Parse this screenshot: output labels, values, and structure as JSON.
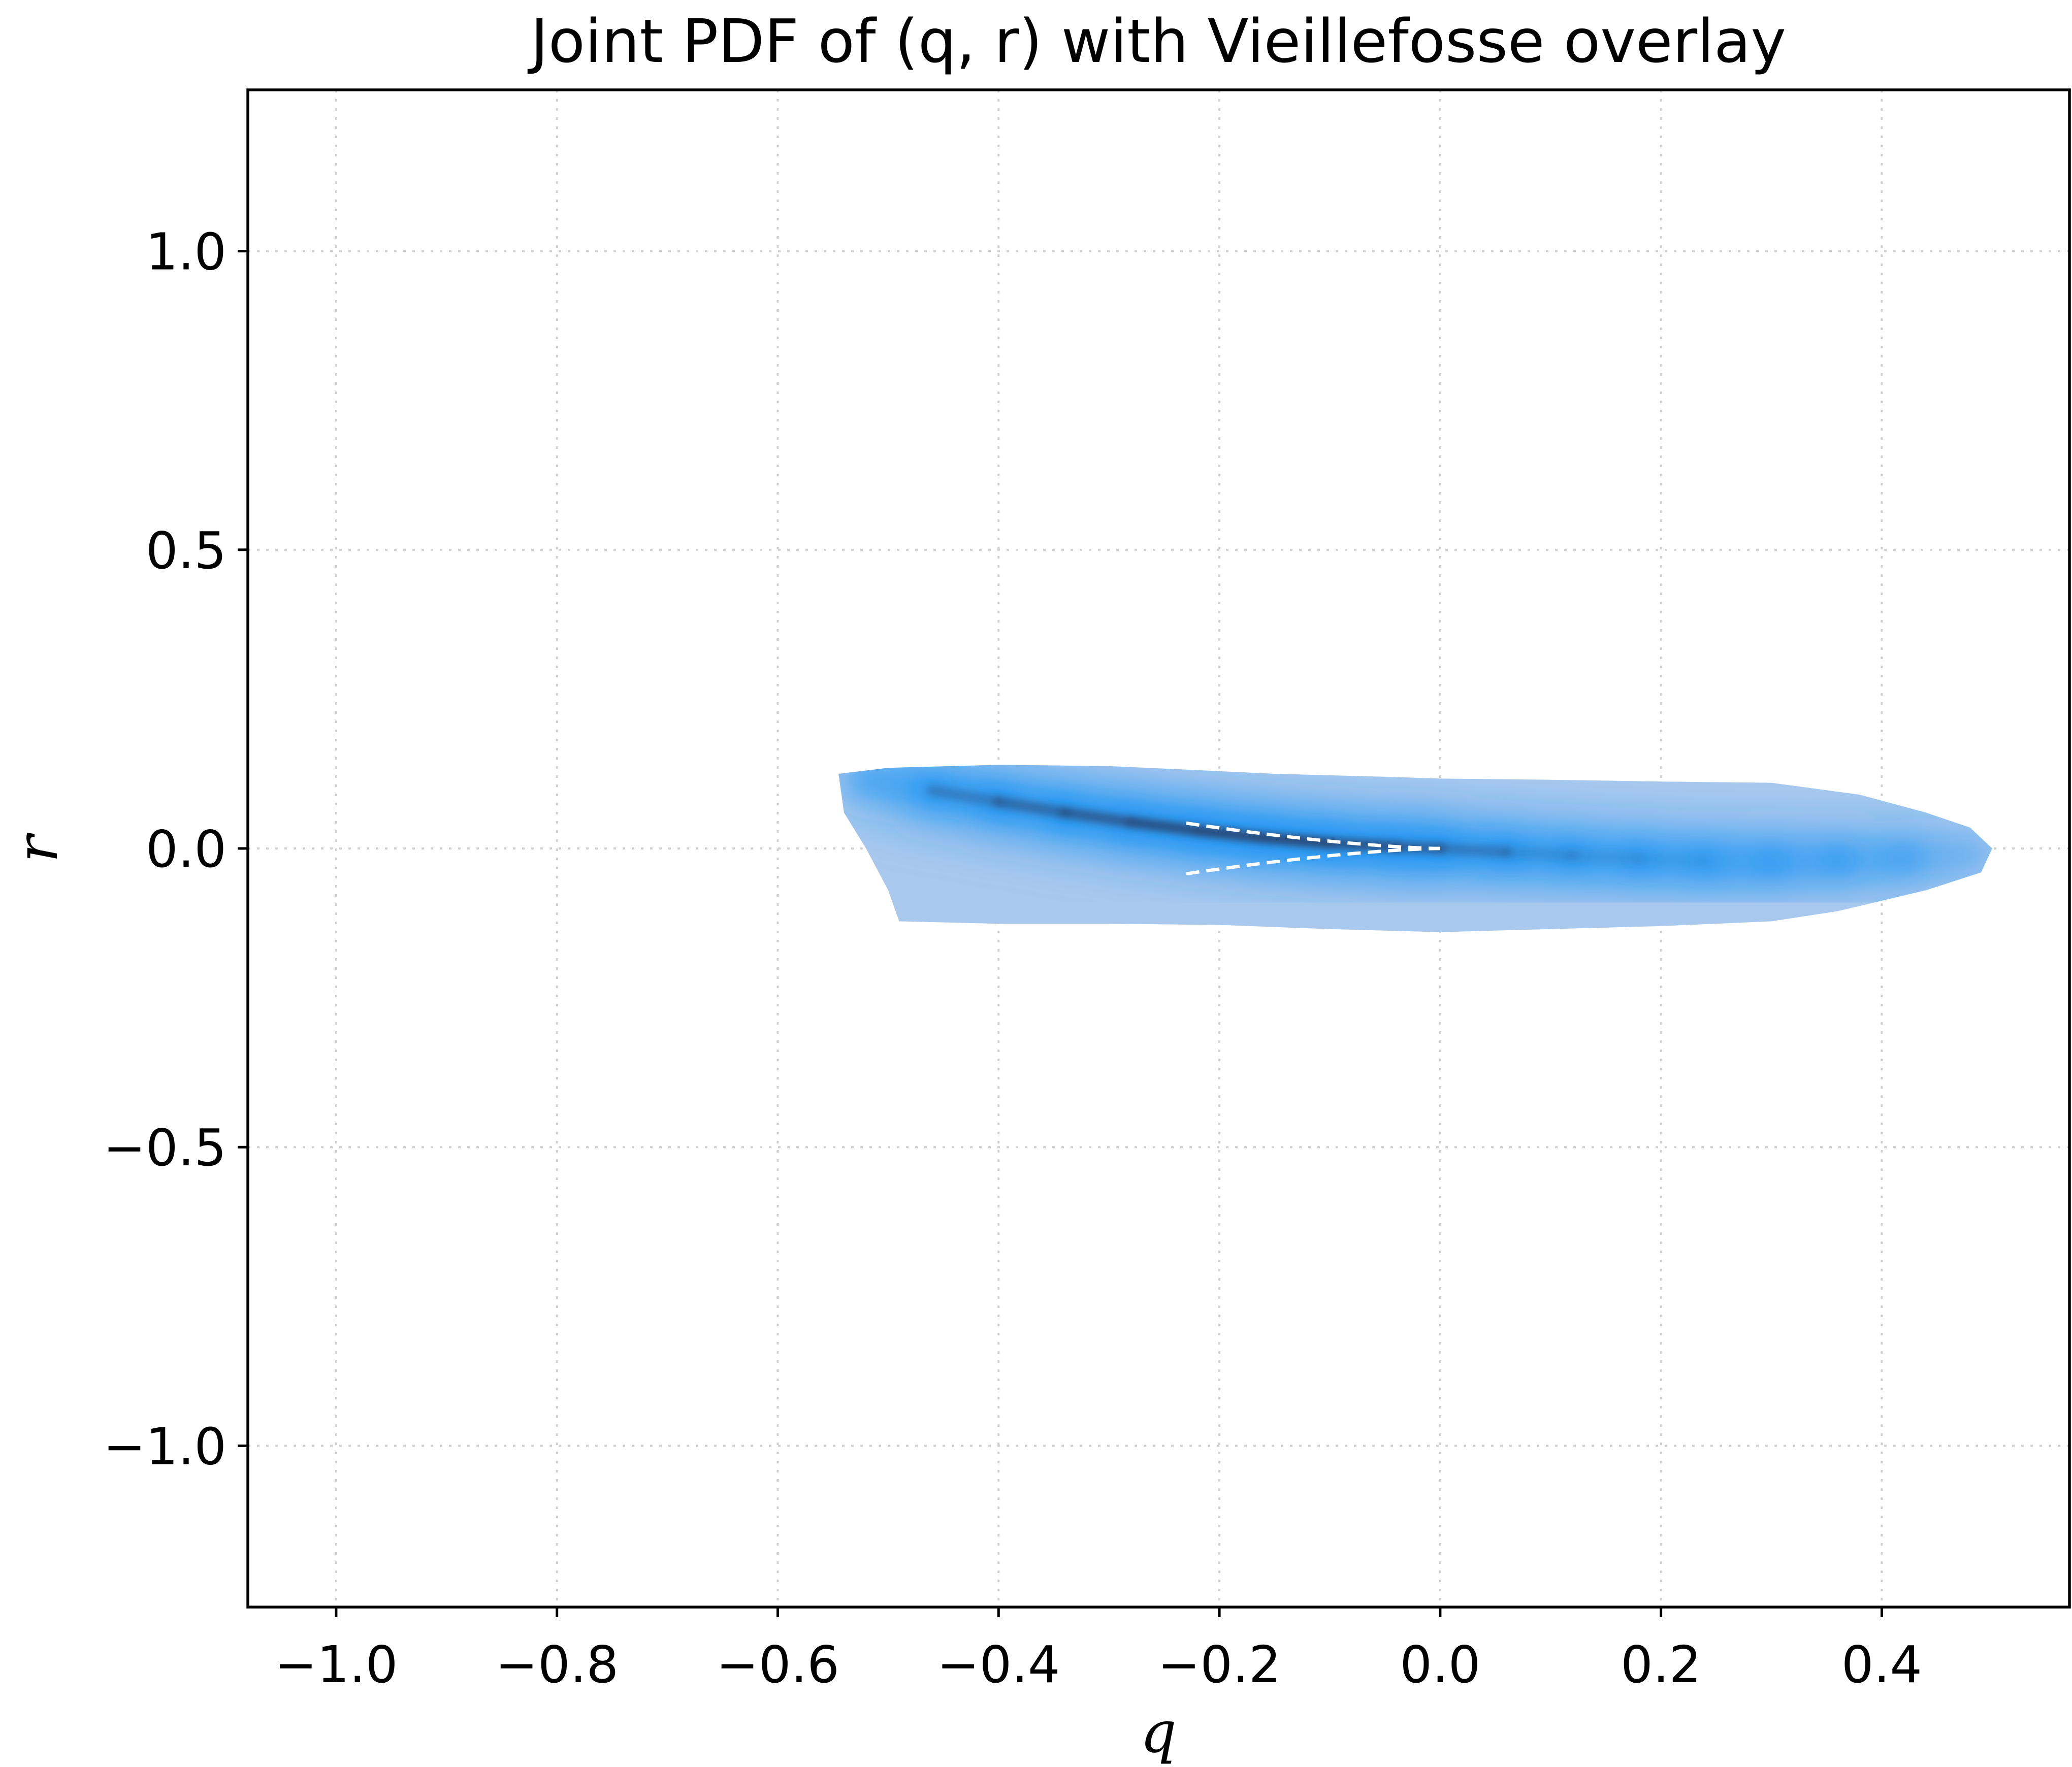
{
  "chart_data": {
    "type": "heatmap",
    "title": "Joint PDF of (q, r) with Vieillefosse overlay",
    "xlabel": "q",
    "ylabel": "r",
    "xlim": [
      -1.08,
      0.57
    ],
    "ylim": [
      -1.27,
      1.27
    ],
    "grid": true,
    "x_ticks": [
      -1.0,
      -0.8,
      -0.6,
      -0.4,
      -0.2,
      0.0,
      0.2,
      0.4
    ],
    "x_tick_labels": [
      "−1.0",
      "−0.8",
      "−0.6",
      "−0.4",
      "−0.2",
      "0.0",
      "0.2",
      "0.4"
    ],
    "y_ticks": [
      1.0,
      0.5,
      0.0,
      -0.5,
      -1.0
    ],
    "y_tick_labels": [
      "1.0",
      "0.5",
      "0.0",
      "−0.5",
      "−1.0"
    ],
    "colormap": [
      "#ffffff",
      "#a9c8ee",
      "#2196f3",
      "#2c4a78"
    ],
    "density_support": {
      "outline": [
        [
          -0.545,
          0.125
        ],
        [
          -0.5,
          0.135
        ],
        [
          -0.4,
          0.14
        ],
        [
          -0.3,
          0.138
        ],
        [
          -0.23,
          0.132
        ],
        [
          -0.15,
          0.125
        ],
        [
          -0.05,
          0.12
        ],
        [
          0.0,
          0.117
        ],
        [
          0.1,
          0.115
        ],
        [
          0.2,
          0.112
        ],
        [
          0.3,
          0.11
        ],
        [
          0.38,
          0.09
        ],
        [
          0.44,
          0.06
        ],
        [
          0.48,
          0.035
        ],
        [
          0.5,
          0.0
        ],
        [
          0.49,
          -0.04
        ],
        [
          0.44,
          -0.07
        ],
        [
          0.36,
          -0.105
        ],
        [
          0.3,
          -0.122
        ],
        [
          0.2,
          -0.13
        ],
        [
          0.1,
          -0.135
        ],
        [
          0.0,
          -0.14
        ],
        [
          -0.1,
          -0.135
        ],
        [
          -0.2,
          -0.128
        ],
        [
          -0.3,
          -0.126
        ],
        [
          -0.4,
          -0.126
        ],
        [
          -0.49,
          -0.122
        ],
        [
          -0.5,
          -0.07
        ],
        [
          -0.52,
          0.0
        ],
        [
          -0.54,
          0.06
        ]
      ]
    },
    "density_ridge": {
      "q": [
        -0.52,
        -0.46,
        -0.4,
        -0.34,
        -0.28,
        -0.22,
        -0.16,
        -0.1,
        -0.04,
        0.0,
        0.06,
        0.12,
        0.18,
        0.24,
        0.3,
        0.36,
        0.42,
        0.48
      ],
      "r": [
        0.115,
        0.097,
        0.078,
        0.06,
        0.044,
        0.03,
        0.018,
        0.009,
        0.003,
        0.0,
        -0.006,
        -0.012,
        -0.017,
        -0.021,
        -0.022,
        -0.02,
        -0.016,
        -0.01
      ],
      "intensity": [
        0.45,
        0.7,
        0.8,
        0.86,
        0.92,
        0.98,
        1.0,
        0.98,
        0.9,
        0.82,
        0.7,
        0.66,
        0.64,
        0.62,
        0.55,
        0.48,
        0.38,
        0.28
      ]
    },
    "vieillefosse_curve": {
      "q_min": -0.23,
      "q_max": 0.0,
      "style": "white dashed",
      "relation": "r = ± sqrt(4(-q)^3/27)"
    }
  }
}
